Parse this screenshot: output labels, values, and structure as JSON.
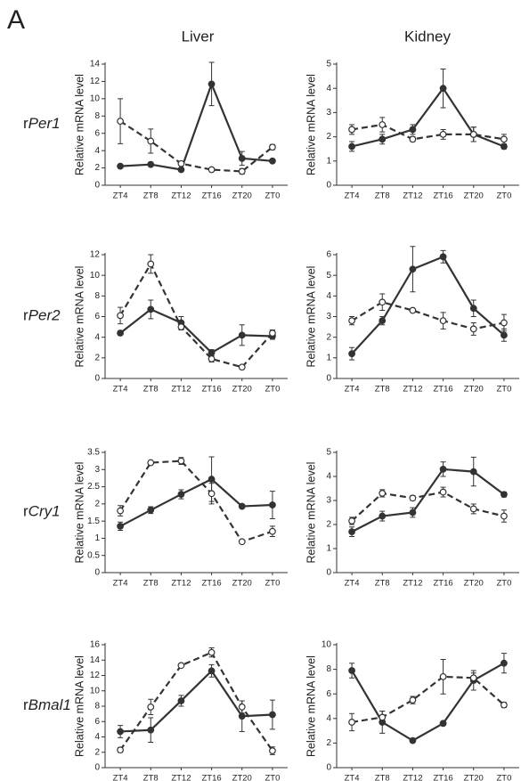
{
  "panel_label": "A",
  "columns": [
    "Liver",
    "Kidney"
  ],
  "rows": [
    {
      "prefix": "r",
      "gene": "Per1"
    },
    {
      "prefix": "r",
      "gene": "Per2"
    },
    {
      "prefix": "r",
      "gene": "Cry1"
    },
    {
      "prefix": "r",
      "gene": "Bmal1"
    }
  ],
  "chart_data": [
    {
      "type": "line",
      "ylabel": "Relative mRNA level",
      "categories": [
        "ZT4",
        "ZT8",
        "ZT12",
        "ZT16",
        "ZT20",
        "ZT0"
      ],
      "ylim": [
        0,
        14
      ],
      "yticks": [
        0,
        2,
        4,
        6,
        8,
        10,
        12,
        14
      ],
      "series": [
        {
          "color": "#333333",
          "marker": "filled",
          "linestyle": "solid",
          "values": [
            2.2,
            2.4,
            1.8,
            11.7,
            3.1,
            2.8
          ],
          "errors": [
            0.2,
            0.2,
            0.2,
            2.5,
            0.8,
            0.2
          ]
        },
        {
          "color": "#333333",
          "marker": "open",
          "linestyle": "dashed",
          "values": [
            7.4,
            5.1,
            2.5,
            1.8,
            1.6,
            4.4
          ],
          "errors": [
            2.6,
            1.4,
            0.2,
            0.2,
            0.3,
            0.3
          ]
        }
      ]
    },
    {
      "type": "line",
      "ylabel": "Relative mRNA level",
      "categories": [
        "ZT4",
        "ZT8",
        "ZT12",
        "ZT16",
        "ZT20",
        "ZT0"
      ],
      "ylim": [
        0,
        5
      ],
      "yticks": [
        0,
        1,
        2,
        3,
        4,
        5
      ],
      "series": [
        {
          "color": "#333333",
          "marker": "filled",
          "linestyle": "solid",
          "values": [
            1.6,
            1.9,
            2.3,
            4.0,
            2.1,
            1.6
          ],
          "errors": [
            0.2,
            0.2,
            0.2,
            0.8,
            0.3,
            0.1
          ]
        },
        {
          "color": "#333333",
          "marker": "open",
          "linestyle": "dashed",
          "values": [
            2.3,
            2.5,
            1.9,
            2.1,
            2.1,
            1.9
          ],
          "errors": [
            0.2,
            0.3,
            0.1,
            0.2,
            0.3,
            0.2
          ]
        }
      ]
    },
    {
      "type": "line",
      "ylabel": "Relative mRNA level",
      "categories": [
        "ZT4",
        "ZT8",
        "ZT12",
        "ZT16",
        "ZT20",
        "ZT0"
      ],
      "ylim": [
        0,
        12
      ],
      "yticks": [
        0,
        2,
        4,
        6,
        8,
        10,
        12
      ],
      "series": [
        {
          "color": "#333333",
          "marker": "filled",
          "linestyle": "solid",
          "values": [
            4.4,
            6.7,
            5.4,
            2.5,
            4.2,
            4.1
          ],
          "errors": [
            0.2,
            0.9,
            0.6,
            0.3,
            1.0,
            0.3
          ]
        },
        {
          "color": "#333333",
          "marker": "open",
          "linestyle": "dashed",
          "values": [
            6.1,
            11.1,
            5.0,
            1.9,
            1.1,
            4.4
          ],
          "errors": [
            0.8,
            0.9,
            0.3,
            0.3,
            0.2,
            0.3
          ]
        }
      ]
    },
    {
      "type": "line",
      "ylabel": "Relative mRNA level",
      "categories": [
        "ZT4",
        "ZT8",
        "ZT12",
        "ZT16",
        "ZT20",
        "ZT0"
      ],
      "ylim": [
        0,
        6
      ],
      "yticks": [
        0,
        1,
        2,
        3,
        4,
        5,
        6
      ],
      "series": [
        {
          "color": "#333333",
          "marker": "filled",
          "linestyle": "solid",
          "values": [
            1.2,
            2.8,
            5.3,
            5.9,
            3.4,
            2.1
          ],
          "errors": [
            0.3,
            0.2,
            1.1,
            0.3,
            0.4,
            0.3
          ]
        },
        {
          "color": "#333333",
          "marker": "open",
          "linestyle": "dashed",
          "values": [
            2.8,
            3.7,
            3.3,
            2.8,
            2.4,
            2.7
          ],
          "errors": [
            0.2,
            0.4,
            0.1,
            0.4,
            0.3,
            0.4
          ]
        }
      ]
    },
    {
      "type": "line",
      "ylabel": "Relative mRNA level",
      "categories": [
        "ZT4",
        "ZT8",
        "ZT12",
        "ZT16",
        "ZT20",
        "ZT0"
      ],
      "ylim": [
        0,
        3.5
      ],
      "yticks": [
        0,
        0.5,
        1,
        1.5,
        2,
        2.5,
        3,
        3.5
      ],
      "series": [
        {
          "color": "#333333",
          "marker": "filled",
          "linestyle": "solid",
          "values": [
            1.35,
            1.82,
            2.28,
            2.72,
            1.93,
            1.97
          ],
          "errors": [
            0.12,
            0.1,
            0.13,
            0.65,
            0.05,
            0.4
          ]
        },
        {
          "color": "#333333",
          "marker": "open",
          "linestyle": "dashed",
          "values": [
            1.8,
            3.2,
            3.25,
            2.3,
            0.9,
            1.2
          ],
          "errors": [
            0.15,
            0.05,
            0.1,
            0.3,
            0.05,
            0.15
          ]
        }
      ]
    },
    {
      "type": "line",
      "ylabel": "Relative mRNA level",
      "categories": [
        "ZT4",
        "ZT8",
        "ZT12",
        "ZT16",
        "ZT20",
        "ZT0"
      ],
      "ylim": [
        0,
        5
      ],
      "yticks": [
        0,
        1,
        2,
        3,
        4,
        5
      ],
      "series": [
        {
          "color": "#333333",
          "marker": "filled",
          "linestyle": "solid",
          "values": [
            1.7,
            2.35,
            2.5,
            4.3,
            4.2,
            3.25
          ],
          "errors": [
            0.2,
            0.2,
            0.2,
            0.3,
            0.6,
            0.1
          ]
        },
        {
          "color": "#333333",
          "marker": "open",
          "linestyle": "dashed",
          "values": [
            2.15,
            3.3,
            3.1,
            3.35,
            2.65,
            2.35
          ],
          "errors": [
            0.15,
            0.15,
            0.1,
            0.2,
            0.2,
            0.25
          ]
        }
      ]
    },
    {
      "type": "line",
      "ylabel": "Relative mRNA level",
      "categories": [
        "ZT4",
        "ZT8",
        "ZT12",
        "ZT16",
        "ZT20",
        "ZT0"
      ],
      "ylim": [
        0,
        16
      ],
      "yticks": [
        0,
        2,
        4,
        6,
        8,
        10,
        12,
        14,
        16
      ],
      "series": [
        {
          "color": "#333333",
          "marker": "filled",
          "linestyle": "solid",
          "values": [
            4.7,
            4.9,
            8.7,
            12.6,
            6.7,
            6.9
          ],
          "errors": [
            0.8,
            1.6,
            0.7,
            0.8,
            2.0,
            1.9
          ]
        },
        {
          "color": "#333333",
          "marker": "open",
          "linestyle": "dashed",
          "values": [
            2.3,
            7.9,
            13.3,
            15.0,
            7.9,
            2.2
          ],
          "errors": [
            0.3,
            1.0,
            0.2,
            0.6,
            0.8,
            0.5
          ]
        }
      ]
    },
    {
      "type": "line",
      "ylabel": "Relative mRNA level",
      "categories": [
        "ZT4",
        "ZT8",
        "ZT12",
        "ZT16",
        "ZT20",
        "ZT0"
      ],
      "ylim": [
        0,
        10
      ],
      "yticks": [
        0,
        2,
        4,
        6,
        8,
        10
      ],
      "series": [
        {
          "color": "#333333",
          "marker": "filled",
          "linestyle": "solid",
          "values": [
            7.9,
            3.7,
            2.2,
            3.6,
            7.1,
            8.5
          ],
          "errors": [
            0.6,
            0.9,
            0.1,
            0.1,
            0.8,
            0.8
          ]
        },
        {
          "color": "#333333",
          "marker": "open",
          "linestyle": "dashed",
          "values": [
            3.7,
            4.1,
            5.5,
            7.4,
            7.3,
            5.1
          ],
          "errors": [
            0.7,
            0.5,
            0.3,
            1.4,
            0.4,
            0.2
          ]
        }
      ]
    }
  ]
}
